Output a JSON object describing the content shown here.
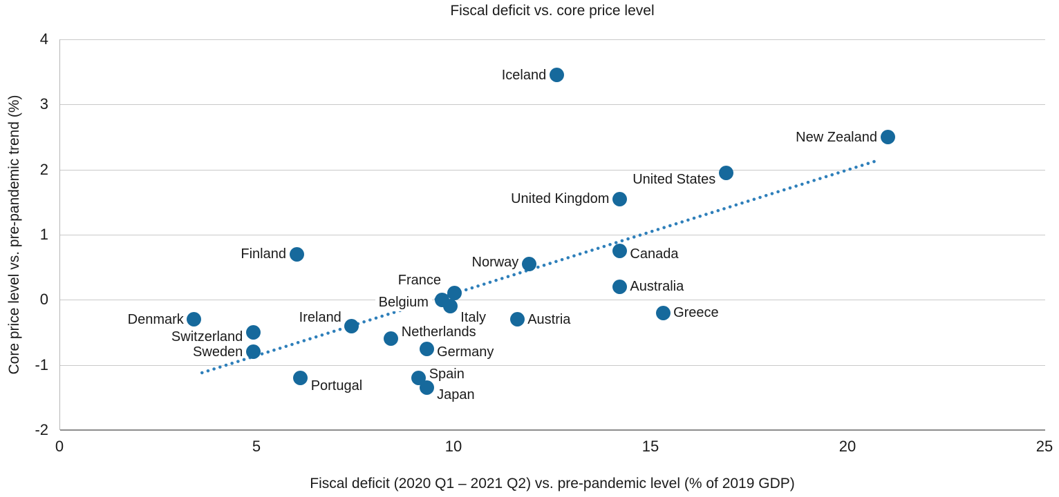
{
  "chart_data": {
    "type": "scatter",
    "title": "Fiscal deficit vs. core price level",
    "xlabel": "Fiscal deficit (2020 Q1 – 2021 Q2) vs. pre-pandemic level  (% of 2019 GDP)",
    "ylabel": "Core price level  vs. pre-pandemic trend (%)",
    "xlim": [
      0,
      25
    ],
    "ylim": [
      -2,
      4
    ],
    "xticks": [
      0,
      5,
      10,
      15,
      20,
      25
    ],
    "yticks": [
      -2,
      -1,
      0,
      1,
      2,
      3,
      4
    ],
    "grid": "horizontal",
    "legend": "none",
    "point_color": "#16699c",
    "trend_color": "#2e7fba",
    "trendline": {
      "style": "dotted",
      "x1": 3.6,
      "y1": -1.12,
      "x2": 20.8,
      "y2": 2.15
    },
    "points": [
      {
        "name": "Iceland",
        "x": 12.6,
        "y": 3.45,
        "label_side": "left",
        "label_dy": 0
      },
      {
        "name": "New Zealand",
        "x": 21.0,
        "y": 2.5,
        "label_side": "left",
        "label_dy": 0
      },
      {
        "name": "United States",
        "x": 16.9,
        "y": 1.95,
        "label_side": "left",
        "label_dy": 10
      },
      {
        "name": "United Kingdom",
        "x": 14.2,
        "y": 1.55,
        "label_side": "left",
        "label_dy": 0
      },
      {
        "name": "Canada",
        "x": 14.2,
        "y": 0.75,
        "label_side": "right",
        "label_dy": 4
      },
      {
        "name": "Norway",
        "x": 11.9,
        "y": 0.55,
        "label_side": "left",
        "label_dy": -2
      },
      {
        "name": "Australia",
        "x": 14.2,
        "y": 0.2,
        "label_side": "right",
        "label_dy": 0
      },
      {
        "name": "Greece",
        "x": 15.3,
        "y": -0.2,
        "label_side": "right",
        "label_dy": 0
      },
      {
        "name": "Finland",
        "x": 6.0,
        "y": 0.7,
        "label_side": "left",
        "label_dy": 0
      },
      {
        "name": "France",
        "x": 10.0,
        "y": 0.1,
        "label_side": "left",
        "label_dy": -19,
        "label_dx": -4
      },
      {
        "name": "Belgium",
        "x": 9.7,
        "y": 0.0,
        "label_side": "left",
        "label_dy": 4,
        "highlight": true
      },
      {
        "name": "Italy",
        "x": 9.9,
        "y": -0.1,
        "label_side": "right",
        "label_dy": 16
      },
      {
        "name": "Austria",
        "x": 11.6,
        "y": -0.3,
        "label_side": "right",
        "label_dy": 0
      },
      {
        "name": "Denmark",
        "x": 3.4,
        "y": -0.3,
        "label_side": "left",
        "label_dy": 0
      },
      {
        "name": "Switzerland",
        "x": 4.9,
        "y": -0.5,
        "label_side": "left",
        "label_dy": 6
      },
      {
        "name": "Sweden",
        "x": 4.9,
        "y": -0.8,
        "label_side": "left",
        "label_dy": 0
      },
      {
        "name": "Ireland",
        "x": 7.4,
        "y": -0.4,
        "label_side": "left",
        "label_dy": -12
      },
      {
        "name": "Netherlands",
        "x": 8.4,
        "y": -0.6,
        "label_side": "right",
        "label_dy": -10
      },
      {
        "name": "Germany",
        "x": 9.3,
        "y": -0.75,
        "label_side": "right",
        "label_dy": 5
      },
      {
        "name": "Spain",
        "x": 9.1,
        "y": -1.2,
        "label_side": "right",
        "label_dy": -6
      },
      {
        "name": "Japan",
        "x": 9.3,
        "y": -1.35,
        "label_side": "right",
        "label_dy": 10
      },
      {
        "name": "Portugal",
        "x": 6.1,
        "y": -1.2,
        "label_side": "right",
        "label_dy": 11
      }
    ]
  }
}
